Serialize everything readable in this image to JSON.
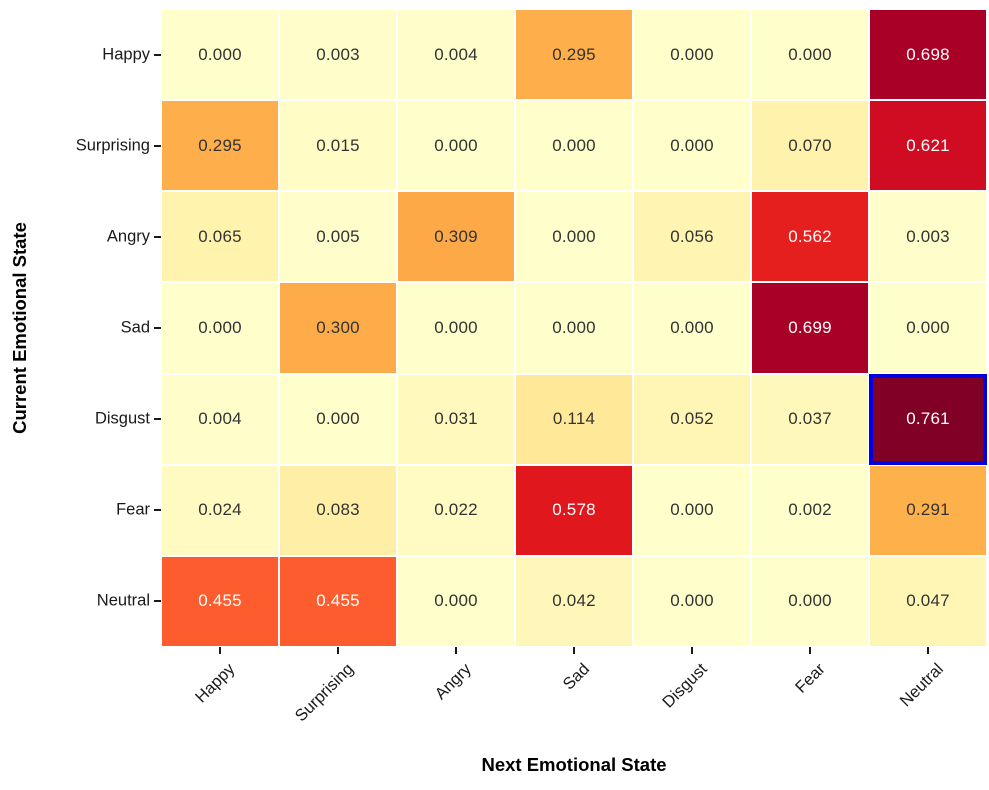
{
  "chart_data": {
    "type": "heatmap",
    "xlabel": "Next Emotional State",
    "ylabel": "Current Emotional State",
    "x_categories": [
      "Happy",
      "Surprising",
      "Angry",
      "Sad",
      "Disgust",
      "Fear",
      "Neutral"
    ],
    "y_categories": [
      "Happy",
      "Surprising",
      "Angry",
      "Sad",
      "Disgust",
      "Fear",
      "Neutral"
    ],
    "matrix": [
      [
        0.0,
        0.003,
        0.004,
        0.295,
        0.0,
        0.0,
        0.698
      ],
      [
        0.295,
        0.015,
        0.0,
        0.0,
        0.0,
        0.07,
        0.621
      ],
      [
        0.065,
        0.005,
        0.309,
        0.0,
        0.056,
        0.562,
        0.003
      ],
      [
        0.0,
        0.3,
        0.0,
        0.0,
        0.0,
        0.699,
        0.0
      ],
      [
        0.004,
        0.0,
        0.031,
        0.114,
        0.052,
        0.037,
        0.761
      ],
      [
        0.024,
        0.083,
        0.022,
        0.578,
        0.0,
        0.002,
        0.291
      ],
      [
        0.455,
        0.455,
        0.0,
        0.042,
        0.0,
        0.0,
        0.047
      ]
    ],
    "value_decimals": 3,
    "vmin": 0,
    "vmax": 0.761,
    "colormap_name": "YlOrRd",
    "colormap_anchors": [
      [
        0.0,
        "#ffffcc"
      ],
      [
        0.125,
        "#ffeda0"
      ],
      [
        0.25,
        "#fed976"
      ],
      [
        0.375,
        "#feb24c"
      ],
      [
        0.5,
        "#fd8d3c"
      ],
      [
        0.625,
        "#fc4e2a"
      ],
      [
        0.75,
        "#e31a1c"
      ],
      [
        0.875,
        "#bd0026"
      ],
      [
        1.0,
        "#800026"
      ]
    ],
    "highlight_cell": {
      "row": "Disgust",
      "col": "Neutral",
      "row_index": 4,
      "col_index": 6,
      "border_color": "#0000e0"
    },
    "annotation_dark_text": "#333333",
    "annotation_light_text": "#ffffff",
    "light_text_threshold": 0.5,
    "grid_line_color": "#ffffff",
    "legend": "none",
    "grid": "off"
  }
}
